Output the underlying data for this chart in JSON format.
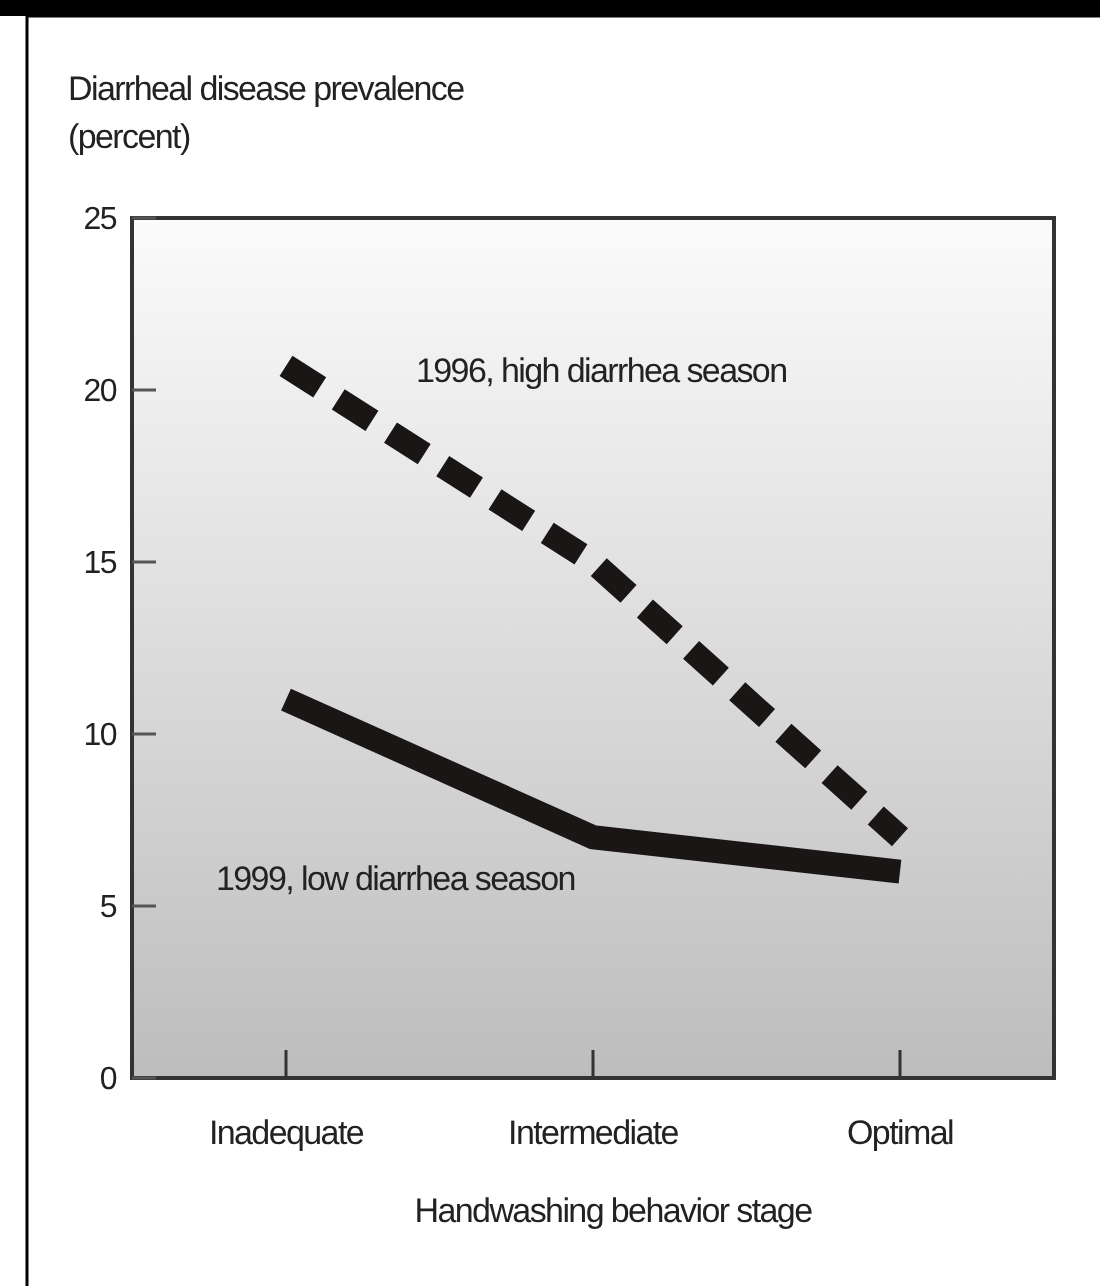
{
  "chart_data": {
    "type": "line",
    "ylabel": "Diarrheal disease prevalence (percent)",
    "xlabel": "Handwashing behavior stage",
    "categories": [
      "Inadequate",
      "Intermediate",
      "Optimal"
    ],
    "ylim": [
      0,
      25
    ],
    "yticks": [
      0,
      5,
      10,
      15,
      20,
      25
    ],
    "grid": false,
    "marker": "none",
    "series": [
      {
        "name": "1996, high diarrhea season",
        "color": "#1a1616",
        "values": [
          20.7,
          15,
          7
        ],
        "line_style": "dashed"
      },
      {
        "name": "1999, low diarrhea season",
        "color": "#1a1616",
        "values": [
          11,
          7,
          6
        ],
        "line_style": "solid"
      }
    ]
  }
}
